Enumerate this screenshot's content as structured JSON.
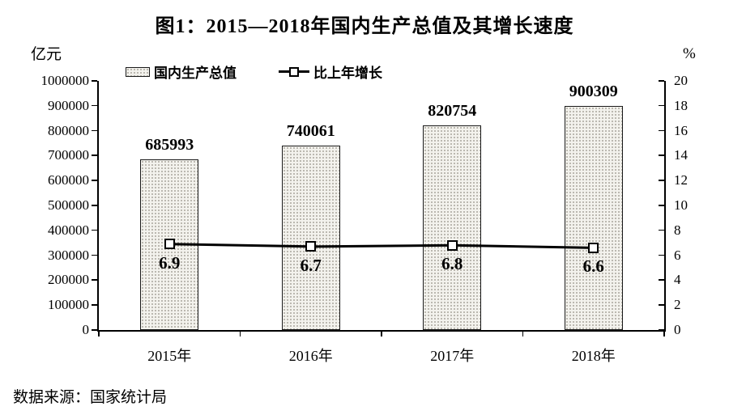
{
  "title": "图1：2015—2018年国内生产总值及其增长速度",
  "source": "数据来源：国家统计局",
  "legend": {
    "bar_label": "国内生产总值",
    "line_label": "比上年增长"
  },
  "chart_data": {
    "type": "bar",
    "title": "图1：2015—2018年国内生产总值及其增长速度",
    "categories": [
      "2015年",
      "2016年",
      "2017年",
      "2018年"
    ],
    "series": [
      {
        "name": "国内生产总值",
        "type": "bar",
        "axis": "left",
        "unit": "亿元",
        "values": [
          685993,
          740061,
          820754,
          900309
        ]
      },
      {
        "name": "比上年增长",
        "type": "line",
        "axis": "right",
        "unit": "%",
        "values": [
          6.9,
          6.7,
          6.8,
          6.6
        ]
      }
    ],
    "left_axis": {
      "unit": "亿元",
      "min": 0,
      "max": 1000000,
      "tick_step": 100000,
      "tick_labels": [
        "0",
        "100000",
        "200000",
        "300000",
        "400000",
        "500000",
        "600000",
        "700000",
        "800000",
        "900000",
        "1000000"
      ]
    },
    "right_axis": {
      "unit": "%",
      "min": 0,
      "max": 20,
      "tick_step": 2,
      "tick_labels": [
        "0",
        "2",
        "4",
        "6",
        "8",
        "10",
        "12",
        "14",
        "16",
        "18",
        "20"
      ]
    },
    "grid": false,
    "legend_position": "top-left",
    "colors": {
      "bar_fill": "#f3f2ed",
      "bar_dot": "#a8a49c",
      "bar_border": "#1a1a1a",
      "line": "#000000",
      "marker_fill": "#ffffff",
      "text": "#000000",
      "background": "#ffffff"
    }
  }
}
